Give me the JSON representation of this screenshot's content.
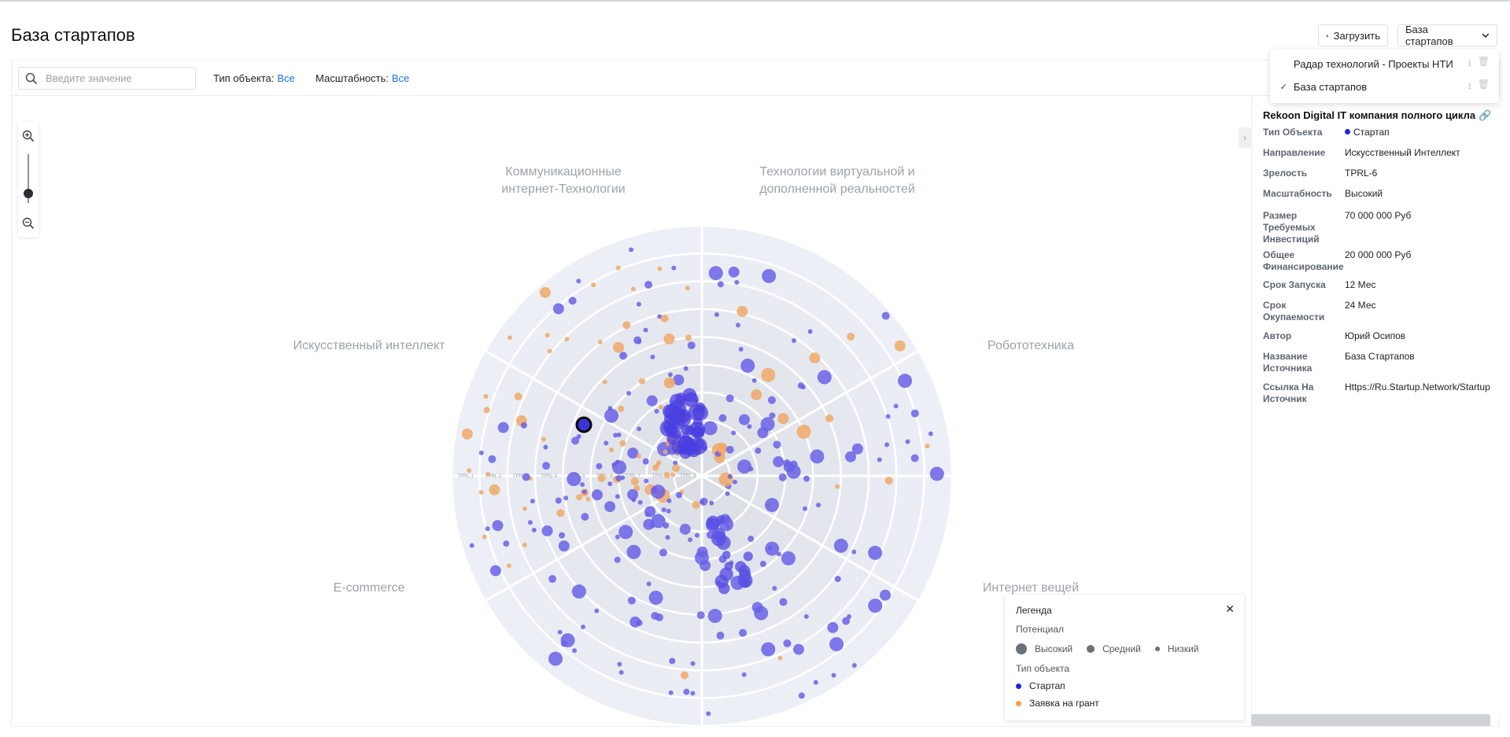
{
  "page": {
    "title": "База стартапов"
  },
  "toolbar": {
    "upload_label": "Загрузить",
    "dataset_label": "База стартапов"
  },
  "dataset_menu": {
    "items": [
      {
        "label": "Радар технологий - Проекты НТИ",
        "checked": false
      },
      {
        "label": "База стартапов",
        "checked": true
      }
    ]
  },
  "filters": {
    "search_placeholder": "Введите значение",
    "object_type_label": "Тип объекта:",
    "object_type_value": "Все",
    "scale_label": "Масштабность:",
    "scale_value": "Все"
  },
  "sectors": [
    {
      "lines": [
        "Коммуникационные",
        "интернет-Технологии"
      ]
    },
    {
      "lines": [
        "Технологии виртуальной и",
        "дополненной реальностей"
      ]
    },
    {
      "lines": [
        "Искусственный интеллект"
      ]
    },
    {
      "lines": [
        "Робототехника"
      ]
    },
    {
      "lines": [
        "E-commerce"
      ]
    },
    {
      "lines": [
        "Интернет вещей"
      ]
    }
  ],
  "chart_data": {
    "type": "scatter",
    "radial_axis_labels": [
      "TPRL-9",
      "TPRL-8",
      "TPRL-7",
      "TPRL-6",
      "TPRL-5",
      "TPRL-4",
      "TPRL-3",
      "TPRL-2",
      "TPRL-1"
    ],
    "colors": {
      "startup": "#6a62e6",
      "grant": "#f0a868",
      "grid_bg": "#e9edf4"
    },
    "highlighted": {
      "sector": "Искусственный интеллект",
      "maturity": "TPRL-6"
    }
  },
  "detail": {
    "title": "Rekoon Digital IT компания полного цикла",
    "rows": [
      {
        "key": "Тип Объекта",
        "value": "Стартап",
        "dot_color": "#2424d6"
      },
      {
        "key": "Направление",
        "value": "Искусственный Интеллект"
      },
      {
        "key": "Зрелость",
        "value": "TPRL-6"
      },
      {
        "key": "Масштабность",
        "value": "Высокий"
      },
      {
        "key": "Размер Требуемых Инвестиций",
        "value": "70 000 000 Руб"
      },
      {
        "key": "Общее Финансирование",
        "value": "20 000 000 Руб"
      },
      {
        "key": "Срок Запуска",
        "value": "12 Мес"
      },
      {
        "key": "Срок Окупаемости",
        "value": "24 Мес"
      },
      {
        "key": "Автор",
        "value": "Юрий Осипов"
      },
      {
        "key": "Название Источника",
        "value": "База Стартапов"
      },
      {
        "key": "Ссылка На Источник",
        "value": "Https://Ru.Startup.Network/Startup"
      }
    ]
  },
  "legend": {
    "title": "Легенда",
    "potential_label": "Потенциал",
    "potential": [
      "Высокий",
      "Средний",
      "Низкий"
    ],
    "type_label": "Тип объекта",
    "types": [
      {
        "label": "Стартап",
        "color": "#2424d6"
      },
      {
        "label": "Заявка на грант",
        "color": "#f0a040"
      }
    ]
  }
}
